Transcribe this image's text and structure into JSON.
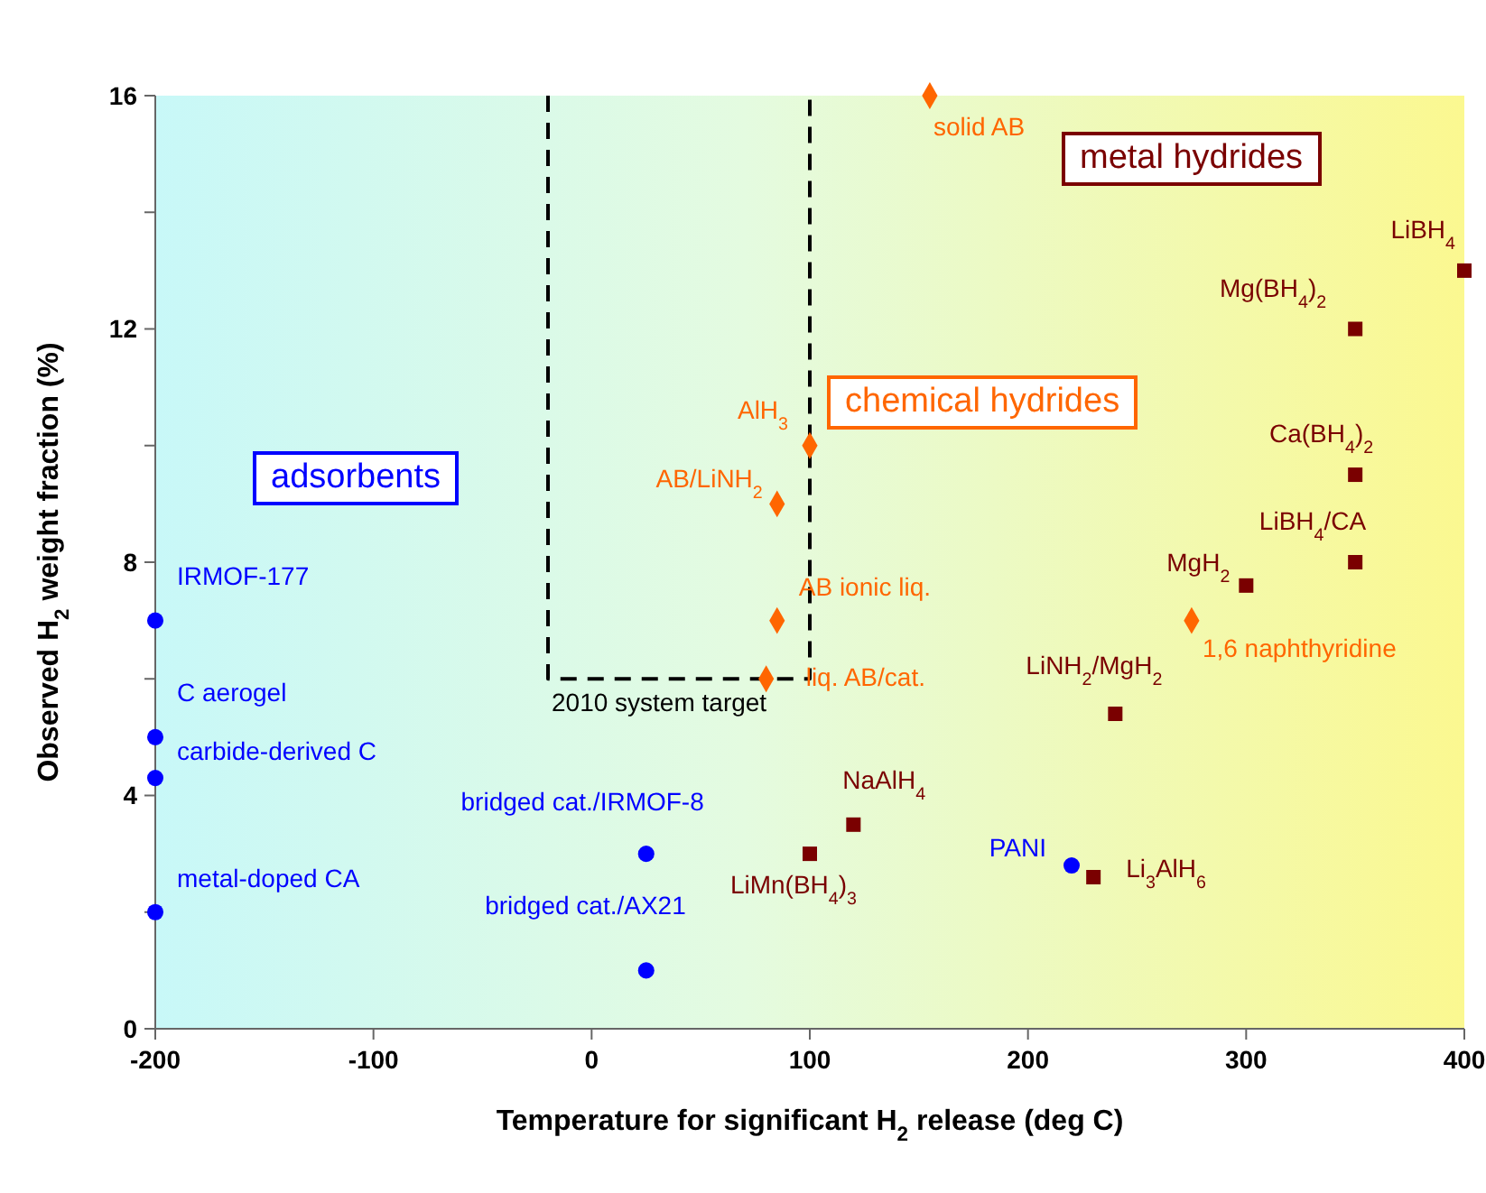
{
  "chart_data": {
    "type": "scatter",
    "xlabel": "Temperature for significant H$_{2}$ release (deg C)",
    "ylabel": "Observed H$_{2}$ weight fraction (%)",
    "xlim": [
      -200,
      400
    ],
    "xticks": [
      -200,
      -100,
      0,
      100,
      200,
      300,
      400
    ],
    "ylim": [
      0,
      16
    ],
    "yticks": [
      0,
      {
        "value": 2,
        "label": null
      },
      4,
      {
        "value": 6,
        "label": null
      },
      8,
      {
        "value": 10,
        "label": null
      },
      12,
      {
        "value": 14,
        "label": null
      },
      16
    ],
    "grid": false,
    "series": [
      {
        "name": "adsorbents",
        "color": "#0000ff",
        "marker": "circle",
        "x": [
          -200,
          -200,
          -200,
          -200,
          25,
          25,
          220
        ],
        "values": [
          7,
          5,
          4.3,
          2,
          3,
          1,
          2.8
        ]
      },
      {
        "name": "chemical hydrides",
        "color": "#ff6600",
        "marker": "diamond",
        "x": [
          155,
          100,
          85,
          85,
          80,
          275
        ],
        "values": [
          16,
          10,
          9,
          7,
          6,
          7
        ]
      },
      {
        "name": "metal hydrides",
        "color": "#7a0000",
        "marker": "square",
        "x": [
          400,
          350,
          350,
          350,
          300,
          240,
          120,
          100,
          230
        ],
        "values": [
          13,
          12,
          9.5,
          8,
          7.6,
          5.4,
          3.5,
          3,
          2.6
        ]
      },
      {
        "type": "line",
        "color": "#000000",
        "line_style": "dashed",
        "marker": "none",
        "x": [
          -20,
          -20,
          100,
          100
        ],
        "values": [
          16,
          6,
          6,
          16
        ]
      }
    ],
    "annotations": [
      {
        "text": "IRMOF-177",
        "x": -200,
        "y": 7
      },
      {
        "text": "C aerogel",
        "x": -200,
        "y": 5
      },
      {
        "text": "carbide-derived C",
        "x": -200,
        "y": 4.3
      },
      {
        "text": "metal-doped CA",
        "x": -200,
        "y": 2
      },
      {
        "text": "bridged cat./IRMOF-8",
        "x": 25,
        "y": 3
      },
      {
        "text": "bridged cat./AX21",
        "x": 25,
        "y": 1
      },
      {
        "text": "PANI",
        "x": 220,
        "y": 2.8
      },
      {
        "text": "solid AB",
        "x": 155,
        "y": 16
      },
      {
        "text": "AlH$_{3}$",
        "x": 100,
        "y": 10
      },
      {
        "text": "AB/LiNH$_{2}$",
        "x": 85,
        "y": 9
      },
      {
        "text": "AB ionic liq.",
        "x": 85,
        "y": 7
      },
      {
        "text": "liq. AB/cat.",
        "x": 80,
        "y": 6
      },
      {
        "text": "1,6 naphthyridine",
        "x": 275,
        "y": 7
      },
      {
        "text": "LiBH$_{4}$",
        "x": 400,
        "y": 13
      },
      {
        "text": "Mg(BH$_{4}$)$_{2}$",
        "x": 350,
        "y": 12
      },
      {
        "text": "Ca(BH$_{4}$)$_{2}$",
        "x": 350,
        "y": 9.5
      },
      {
        "text": "LiBH$_{4}$/CA",
        "x": 350,
        "y": 8
      },
      {
        "text": "MgH$_{2}$",
        "x": 300,
        "y": 7.6
      },
      {
        "text": "LiNH$_{2}$/MgH$_{2}$",
        "x": 240,
        "y": 5.4
      },
      {
        "text": "NaAlH$_{4}$",
        "x": 120,
        "y": 3.5
      },
      {
        "text": "LiMn(BH$_{4}$)$_{3}$",
        "x": 100,
        "y": 3
      },
      {
        "text": "Li$_{3}$AlH$_{6}$",
        "x": 230,
        "y": 2.6
      },
      {
        "text": "2010 system target",
        "x": -20,
        "y": 6
      }
    ]
  }
}
